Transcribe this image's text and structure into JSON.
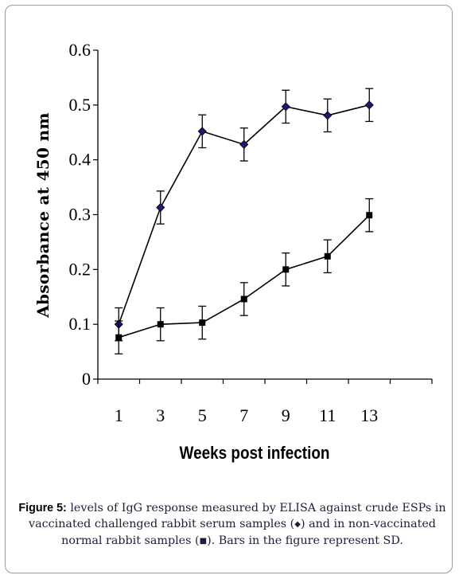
{
  "chart_data": {
    "type": "line",
    "x": [
      1,
      3,
      5,
      7,
      9,
      11,
      13
    ],
    "xticks": [
      "1",
      "3",
      "5",
      "7",
      "9",
      "11",
      "13"
    ],
    "yticks": [
      "0",
      "0.1",
      "0.2",
      "0.3",
      "0.4",
      "0.5",
      "0.6"
    ],
    "xlim": [
      0,
      16
    ],
    "ylim": [
      0,
      0.6
    ],
    "xlabel": "Weeks post infection",
    "ylabel": "Absorbance at 450 nm",
    "grid": false,
    "series": [
      {
        "marker": "diamond",
        "color": "#1a1a6e",
        "values": [
          0.1,
          0.313,
          0.452,
          0.428,
          0.497,
          0.481,
          0.5
        ],
        "sd": [
          0.03,
          0.03,
          0.03,
          0.03,
          0.03,
          0.03,
          0.03
        ]
      },
      {
        "marker": "square",
        "color": "#000000",
        "values": [
          0.076,
          0.1,
          0.103,
          0.146,
          0.2,
          0.224,
          0.299
        ],
        "sd": [
          0.03,
          0.03,
          0.03,
          0.03,
          0.03,
          0.03,
          0.03
        ]
      }
    ]
  },
  "caption": {
    "lead": "Figure 5:",
    "part1": " levels of IgG response measured by ELISA against crude ESPs in vaccinated challenged rabbit serum samples (",
    "diamond_symbol": "◆",
    "part2": ") and in non-vaccinated normal rabbit samples (",
    "square_symbol": "■",
    "part3": "). Bars in the figure represent SD."
  }
}
